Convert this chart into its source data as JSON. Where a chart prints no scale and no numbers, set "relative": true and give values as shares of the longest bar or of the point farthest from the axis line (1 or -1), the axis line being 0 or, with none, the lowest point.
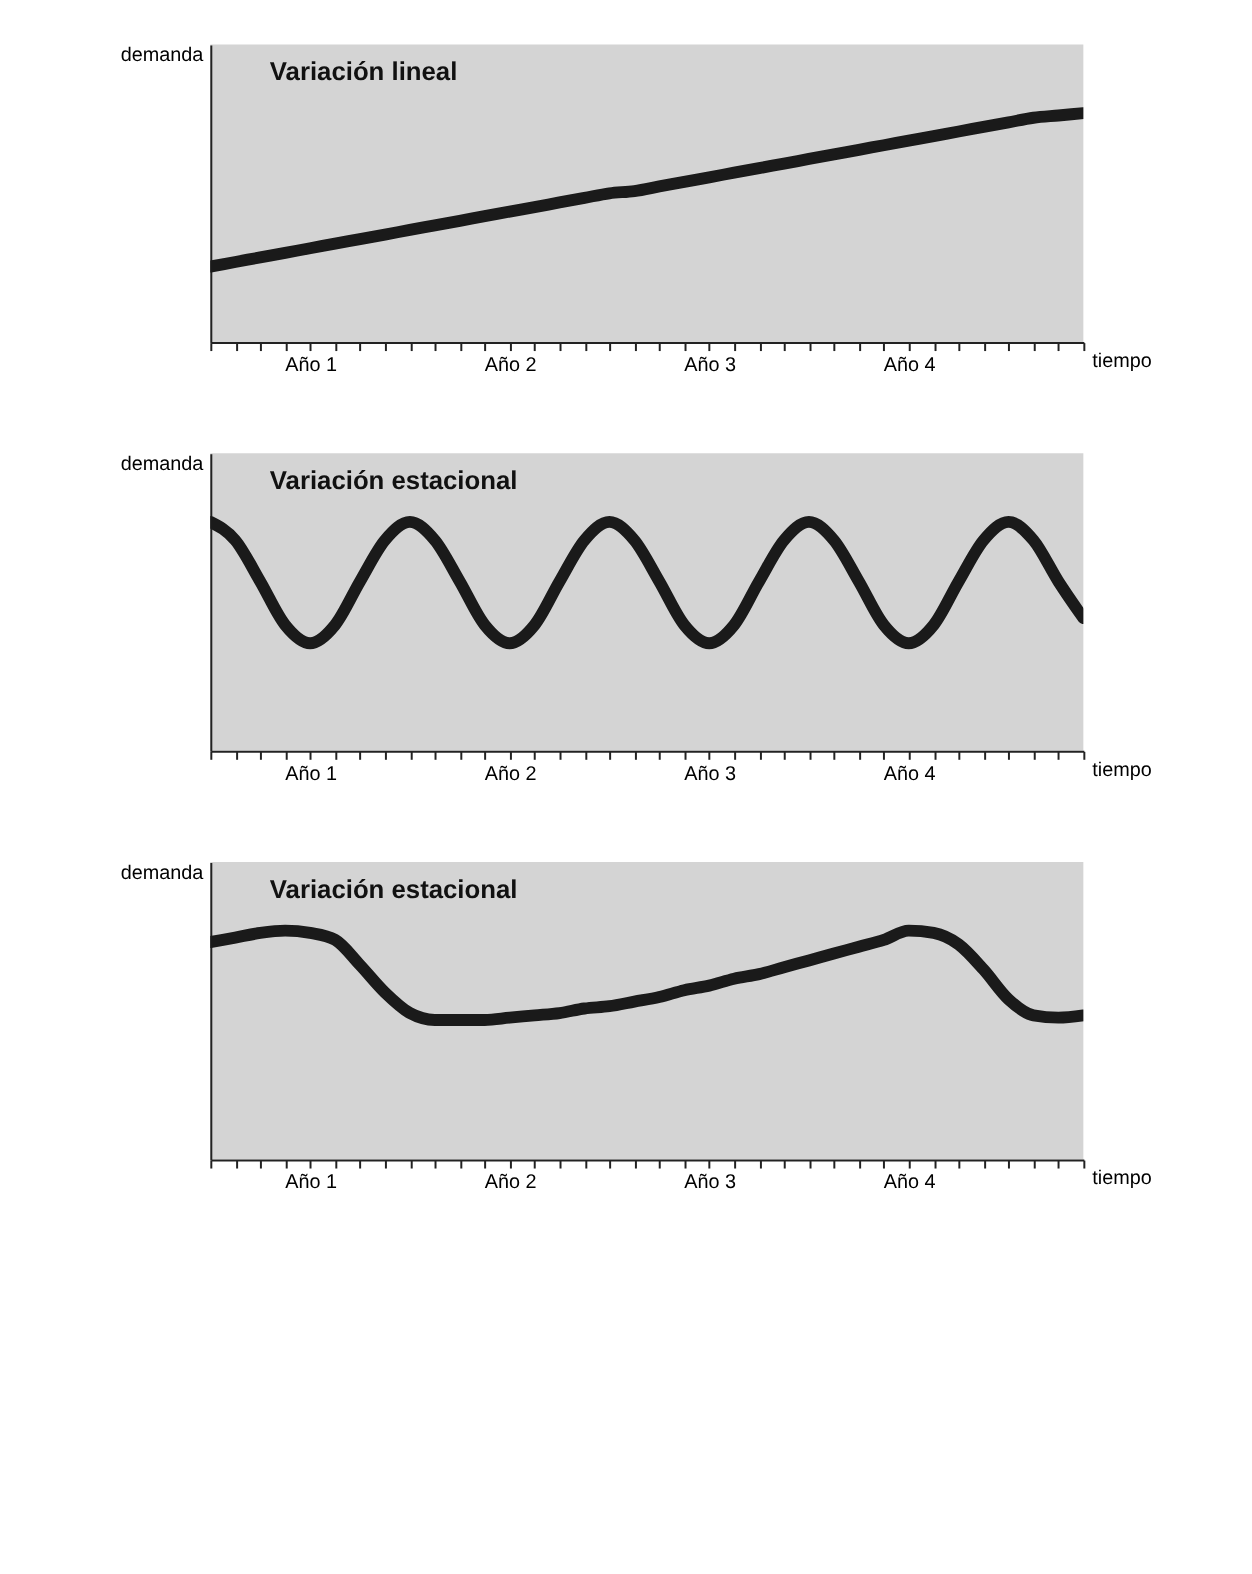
{
  "chart_data": [
    {
      "type": "line",
      "title": "Variación lineal",
      "xlabel": "tiempo",
      "ylabel": "demanda",
      "relative": true,
      "tick_labels": "x",
      "categories": [
        null,
        null,
        null,
        null,
        "Año 1",
        null,
        null,
        null,
        null,
        null,
        null,
        null,
        "Año 2",
        null,
        null,
        null,
        null,
        null,
        null,
        null,
        "Año 3",
        null,
        null,
        null,
        null,
        null,
        null,
        null,
        "Año 4",
        null,
        null,
        null,
        null,
        null,
        null,
        null
      ],
      "series": [
        {
          "color": "#1a1a1a",
          "values": [
            0.33,
            0.35,
            0.37,
            0.39,
            0.41,
            0.43,
            0.45,
            0.47,
            0.49,
            0.51,
            0.53,
            0.55,
            0.57,
            0.59,
            0.61,
            0.63,
            0.65,
            0.66,
            0.68,
            0.7,
            0.72,
            0.74,
            0.76,
            0.78,
            0.8,
            0.82,
            0.84,
            0.86,
            0.88,
            0.9,
            0.92,
            0.94,
            0.96,
            0.98,
            0.99,
            1.0
          ]
        }
      ]
    },
    {
      "type": "line",
      "title": "Variación estacional",
      "xlabel": "tiempo",
      "ylabel": "demanda",
      "relative": true,
      "tick_labels": "x",
      "categories": [
        null,
        null,
        null,
        null,
        "Año 1",
        null,
        null,
        null,
        null,
        null,
        null,
        null,
        "Año 2",
        null,
        null,
        null,
        null,
        null,
        null,
        null,
        "Año 3",
        null,
        null,
        null,
        null,
        null,
        null,
        null,
        "Año 4",
        null,
        null,
        null,
        null,
        null,
        null,
        null
      ],
      "series": [
        {
          "color": "#1a1a1a",
          "values": [
            1,
            0.92,
            0.74,
            0.55,
            0.47,
            0.55,
            0.74,
            0.92,
            1,
            0.92,
            0.74,
            0.55,
            0.47,
            0.55,
            0.74,
            0.92,
            1,
            0.92,
            0.74,
            0.55,
            0.47,
            0.55,
            0.74,
            0.92,
            1,
            0.92,
            0.74,
            0.55,
            0.47,
            0.55,
            0.74,
            0.92,
            1,
            0.92,
            0.74,
            0.58
          ]
        }
      ]
    },
    {
      "type": "line",
      "title": "Variación estacional",
      "xlabel": "tiempo",
      "ylabel": "demanda",
      "relative": true,
      "tick_labels": "x",
      "categories": [
        null,
        null,
        null,
        null,
        "Año 1",
        null,
        null,
        null,
        null,
        null,
        null,
        null,
        "Año 2",
        null,
        null,
        null,
        null,
        null,
        null,
        null,
        "Año 3",
        null,
        null,
        null,
        null,
        null,
        null,
        null,
        "Año 4",
        null,
        null,
        null,
        null,
        null,
        null,
        null
      ],
      "series": [
        {
          "color": "#1a1a1a",
          "values": [
            0.95,
            0.97,
            0.99,
            1.0,
            0.99,
            0.96,
            0.85,
            0.73,
            0.64,
            0.61,
            0.61,
            0.61,
            0.62,
            0.63,
            0.64,
            0.66,
            0.67,
            0.69,
            0.71,
            0.74,
            0.76,
            0.79,
            0.81,
            0.84,
            0.87,
            0.9,
            0.93,
            0.96,
            1.0,
            0.99,
            0.94,
            0.83,
            0.7,
            0.63,
            0.62,
            0.63
          ]
        }
      ]
    }
  ]
}
